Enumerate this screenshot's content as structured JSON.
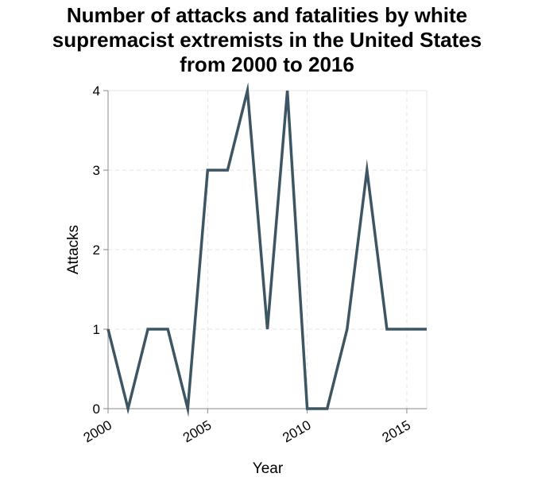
{
  "chart_data": {
    "type": "line",
    "title_lines": [
      "Number of attacks and fatalities by white",
      "supremacist extremists in the United States",
      "from 2000 to 2016"
    ],
    "xlabel": "Year",
    "ylabel": "Attacks",
    "xlim": [
      2000,
      2016
    ],
    "ylim": [
      0,
      4
    ],
    "x_ticks": [
      2000,
      2005,
      2010,
      2015
    ],
    "y_ticks": [
      0,
      1,
      2,
      3,
      4
    ],
    "grid": true,
    "line_color": "#3e5563",
    "series": [
      {
        "x": [
          2000,
          2001,
          2002,
          2003,
          2004,
          2005,
          2006,
          2007,
          2008,
          2009,
          2010,
          2011,
          2012,
          2013,
          2014,
          2015,
          2016
        ],
        "values": [
          1,
          0,
          1,
          1,
          0,
          3,
          3,
          4,
          1,
          4,
          0,
          0,
          1,
          3,
          1,
          1,
          1
        ]
      }
    ]
  }
}
